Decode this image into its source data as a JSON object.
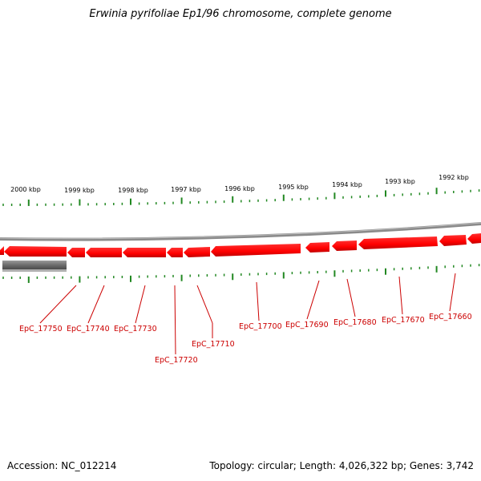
{
  "title": "Erwinia pyrifoliae Ep1/96 chromosome, complete genome",
  "footer": {
    "accession": "Accession: NC_012214",
    "summary": "Topology: circular; Length: 4,026,322 bp; Genes: 3,742"
  },
  "colors": {
    "gene_fill": "#ff0000",
    "gene_shade": "#cc0000",
    "backbone": "#888888",
    "tick": "#228822",
    "label": "#cc0000",
    "other_feature": "#666666"
  },
  "chart_data": {
    "type": "genome-map",
    "scale_labels": [
      "2000 kbp",
      "1999 kbp",
      "1998 kbp",
      "1997 kbp",
      "1996 kbp",
      "1995 kbp",
      "1994 kbp",
      "1993 kbp",
      "1992 kbp"
    ],
    "genes": [
      "EpC_17750",
      "EpC_17740",
      "EpC_17730",
      "EpC_17720",
      "EpC_17710",
      "EpC_17700",
      "EpC_17690",
      "EpC_17680",
      "EpC_17670",
      "EpC_17660"
    ]
  }
}
